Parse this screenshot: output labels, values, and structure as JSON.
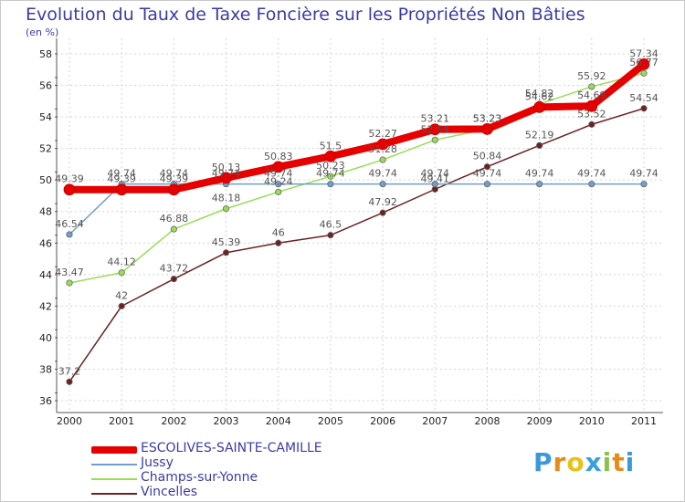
{
  "chart_data": {
    "type": "line",
    "title": "Evolution du Taux de Taxe Foncière sur les Propriétés Non Bâties",
    "ylabel": "(en %)",
    "xlabel": "",
    "ylim": [
      36,
      58
    ],
    "yticks": [
      "36",
      "38",
      "40",
      "42",
      "44",
      "46",
      "48",
      "50",
      "52",
      "54",
      "56",
      "58"
    ],
    "x": [
      "2000",
      "2001",
      "2002",
      "2003",
      "2004",
      "2005",
      "2006",
      "2007",
      "2008",
      "2009",
      "2010",
      "2011"
    ],
    "series": [
      {
        "name": "ESCOLIVES-SAINTE-CAMILLE",
        "color": "#e60000",
        "values": [
          49.39,
          49.39,
          49.39,
          50.13,
          50.83,
          51.5,
          52.27,
          53.21,
          53.23,
          54.62,
          54.69,
          57.34
        ],
        "labels": [
          "49.39",
          "49.39",
          "49.39",
          "50.13",
          "50.83",
          "51.5",
          "52.27",
          "53.21",
          "53.23",
          "54.62",
          "54.69",
          "57.34"
        ]
      },
      {
        "name": "Jussy",
        "color": "#6ea0cf",
        "values": [
          46.54,
          49.74,
          49.74,
          49.74,
          49.74,
          49.74,
          49.74,
          49.74,
          49.74,
          49.74,
          49.74,
          49.74
        ],
        "labels": [
          "46.54",
          "49.74",
          "49.74",
          "49.74",
          "49.74",
          "49.74",
          "49.74",
          "49.74",
          "49.74",
          "49.74",
          "49.74",
          "49.74"
        ]
      },
      {
        "name": "Champs-sur-Yonne",
        "color": "#99dd55",
        "values": [
          43.47,
          44.12,
          46.88,
          48.18,
          49.24,
          50.23,
          51.28,
          52.54,
          53.23,
          54.82,
          55.92,
          56.77
        ],
        "labels": [
          "43.47",
          "44.12",
          "46.88",
          "48.18",
          "49.24",
          "50.23",
          "51.28",
          "52.54",
          "53.23",
          "54.82",
          "55.92",
          "56.77"
        ]
      },
      {
        "name": "Vincelles",
        "color": "#6b2222",
        "values": [
          37.2,
          42,
          43.72,
          45.39,
          46,
          46.5,
          47.92,
          49.41,
          50.84,
          52.19,
          53.52,
          54.54
        ],
        "labels": [
          "37.2",
          "42",
          "43.72",
          "45.39",
          "46",
          "46.5",
          "47.92",
          "49.41",
          "50.84",
          "52.19",
          "53.52",
          "54.54"
        ]
      }
    ]
  },
  "legend": {
    "items": [
      {
        "label": "ESCOLIVES-SAINTE-CAMILLE"
      },
      {
        "label": "Jussy"
      },
      {
        "label": "Champs-sur-Yonne"
      },
      {
        "label": "Vincelles"
      }
    ]
  },
  "logo": {
    "letters": [
      "P",
      "r",
      "o",
      "x",
      "i",
      "t",
      "i"
    ],
    "colors": [
      "#3a9ad9",
      "#e88a1a",
      "#e8c21a",
      "#3aa0d9",
      "#8bc34a",
      "#e88a1a",
      "#3a9ad9"
    ]
  }
}
